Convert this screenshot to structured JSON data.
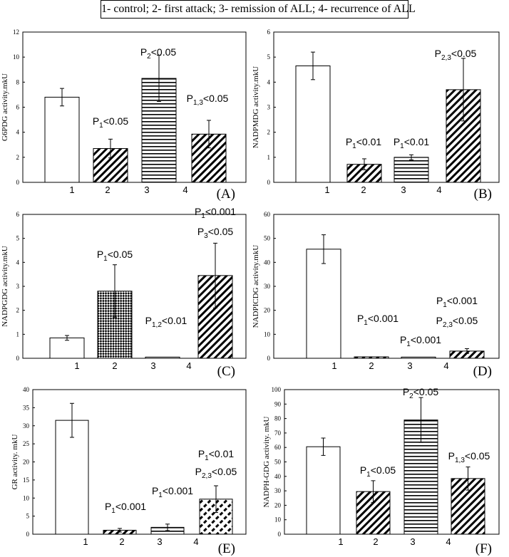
{
  "legend": "1- control; 2- first attack; 3- remission of ALL; 4- recurrence of ALL",
  "chart_data": [
    {
      "type": "bar",
      "panel": "(A)",
      "ylabel": "G6PDG activity.mkU",
      "ylim": [
        0,
        12
      ],
      "yticks": [
        0,
        2,
        4,
        6,
        8,
        10,
        12
      ],
      "categories": [
        "1",
        "2",
        "3",
        "4"
      ],
      "values": [
        6.8,
        2.7,
        8.3,
        3.85
      ],
      "errors": [
        0.7,
        0.75,
        1.85,
        1.1
      ],
      "patterns": [
        "none",
        "diag",
        "horiz",
        "diag"
      ],
      "annotations": [
        {
          "bar": 1,
          "lines": [
            {
              "main": "P",
              "sub": "1",
              "rest": "<0.05"
            }
          ]
        },
        {
          "bar": 2,
          "lines": [
            {
              "main": "P",
              "sub": "2",
              "rest": "<0.05"
            }
          ]
        },
        {
          "bar": 3,
          "lines": [
            {
              "main": "P",
              "sub": "1,3",
              "rest": "<0.05"
            }
          ]
        }
      ]
    },
    {
      "type": "bar",
      "panel": "(B)",
      "ylabel": "NADPMDG activity.mkU",
      "ylim": [
        0,
        6
      ],
      "yticks": [
        0,
        1,
        2,
        3,
        4,
        5,
        6
      ],
      "categories": [
        "1",
        "2",
        "3",
        "4"
      ],
      "values": [
        4.65,
        0.72,
        1.0,
        3.7
      ],
      "errors": [
        0.55,
        0.22,
        0.1,
        1.25
      ],
      "patterns": [
        "none",
        "diag",
        "horiz",
        "diag"
      ],
      "annotations": [
        {
          "bar": 1,
          "lines": [
            {
              "main": "P",
              "sub": "1",
              "rest": "<0.01"
            }
          ]
        },
        {
          "bar": 2,
          "lines": [
            {
              "main": "P",
              "sub": "1",
              "rest": "<0.01"
            }
          ]
        },
        {
          "bar": 3,
          "lines": [
            {
              "main": "P",
              "sub": "2,3",
              "rest": "<0.05"
            }
          ]
        }
      ]
    },
    {
      "type": "bar",
      "panel": "(C)",
      "ylabel": "NADPGDG activity.mkU",
      "ylim": [
        0,
        6
      ],
      "yticks": [
        0,
        1,
        2,
        3,
        4,
        5,
        6
      ],
      "categories": [
        "1",
        "2",
        "3",
        "4"
      ],
      "values": [
        0.85,
        2.8,
        0.05,
        3.45
      ],
      "errors": [
        0.1,
        1.1,
        0.0,
        1.35
      ],
      "patterns": [
        "none",
        "check",
        "none",
        "diag"
      ],
      "annotations": [
        {
          "bar": 1,
          "lines": [
            {
              "main": "P",
              "sub": "1",
              "rest": "<0.05"
            }
          ]
        },
        {
          "bar": 2,
          "lines": [
            {
              "main": "P",
              "sub": "1,2",
              "rest": "<0.01"
            }
          ]
        },
        {
          "bar": 3,
          "lines": [
            {
              "main": "P",
              "sub": "1",
              "rest": "<0.001"
            },
            {
              "main": "P",
              "sub": "3",
              "rest": "<0.05"
            }
          ]
        }
      ]
    },
    {
      "type": "bar",
      "panel": "(D)",
      "ylabel": "NADPICDG activity.mkU",
      "ylim": [
        0,
        60
      ],
      "yticks": [
        0,
        10,
        20,
        30,
        40,
        50,
        60
      ],
      "categories": [
        "1",
        "2",
        "3",
        "4"
      ],
      "values": [
        45.5,
        0.6,
        0.5,
        3.0
      ],
      "errors": [
        6.0,
        0.0,
        0.0,
        1.0
      ],
      "patterns": [
        "none",
        "diag",
        "horiz",
        "diag"
      ],
      "annotations": [
        {
          "bar": 1,
          "lines": [
            {
              "main": "P",
              "sub": "1",
              "rest": "<0.001"
            }
          ]
        },
        {
          "bar": 2,
          "lines": [
            {
              "main": "P",
              "sub": "1",
              "rest": "<0.001"
            }
          ]
        },
        {
          "bar": 3,
          "lines": [
            {
              "main": "P",
              "sub": "1",
              "rest": "<0.001"
            },
            {
              "main": "P",
              "sub": "2,3",
              "rest": "<0.05"
            }
          ]
        }
      ]
    },
    {
      "type": "bar",
      "panel": "(E)",
      "ylabel": "GR activity. mkU",
      "ylim": [
        0,
        40
      ],
      "yticks": [
        0,
        5,
        10,
        15,
        20,
        25,
        30,
        35,
        40
      ],
      "categories": [
        "1",
        "2",
        "3",
        "4"
      ],
      "values": [
        31.5,
        1.1,
        1.9,
        9.7
      ],
      "errors": [
        4.7,
        0.5,
        0.9,
        3.7
      ],
      "patterns": [
        "none",
        "diag",
        "horiz",
        "dashdiag"
      ],
      "annotations": [
        {
          "bar": 1,
          "lines": [
            {
              "main": "P",
              "sub": "1",
              "rest": "<0.001"
            }
          ]
        },
        {
          "bar": 2,
          "lines": [
            {
              "main": "P",
              "sub": "1",
              "rest": "<0.001"
            }
          ]
        },
        {
          "bar": 3,
          "lines": [
            {
              "main": "P",
              "sub": "1",
              "rest": "<0.01"
            },
            {
              "main": "P",
              "sub": "2,3",
              "rest": "<0.05"
            }
          ]
        }
      ]
    },
    {
      "type": "bar",
      "panel": "(F)",
      "ylabel": "NADPH-GDG activity. mkU",
      "ylim": [
        0,
        100
      ],
      "yticks": [
        0,
        10,
        20,
        30,
        40,
        50,
        60,
        70,
        80,
        90,
        100
      ],
      "categories": [
        "1",
        "2",
        "3",
        "4"
      ],
      "values": [
        60.5,
        29.5,
        79.0,
        38.5
      ],
      "errors": [
        6.0,
        7.5,
        15.5,
        8.0
      ],
      "patterns": [
        "none",
        "diag",
        "horiz",
        "diag"
      ],
      "annotations": [
        {
          "bar": 1,
          "lines": [
            {
              "main": "P",
              "sub": "1",
              "rest": "<0.05"
            }
          ]
        },
        {
          "bar": 2,
          "lines": [
            {
              "main": "P",
              "sub": "2",
              "rest": "<0.05"
            }
          ]
        },
        {
          "bar": 3,
          "lines": [
            {
              "main": "P",
              "sub": "1,3",
              "rest": "<0.05"
            }
          ]
        }
      ]
    }
  ]
}
